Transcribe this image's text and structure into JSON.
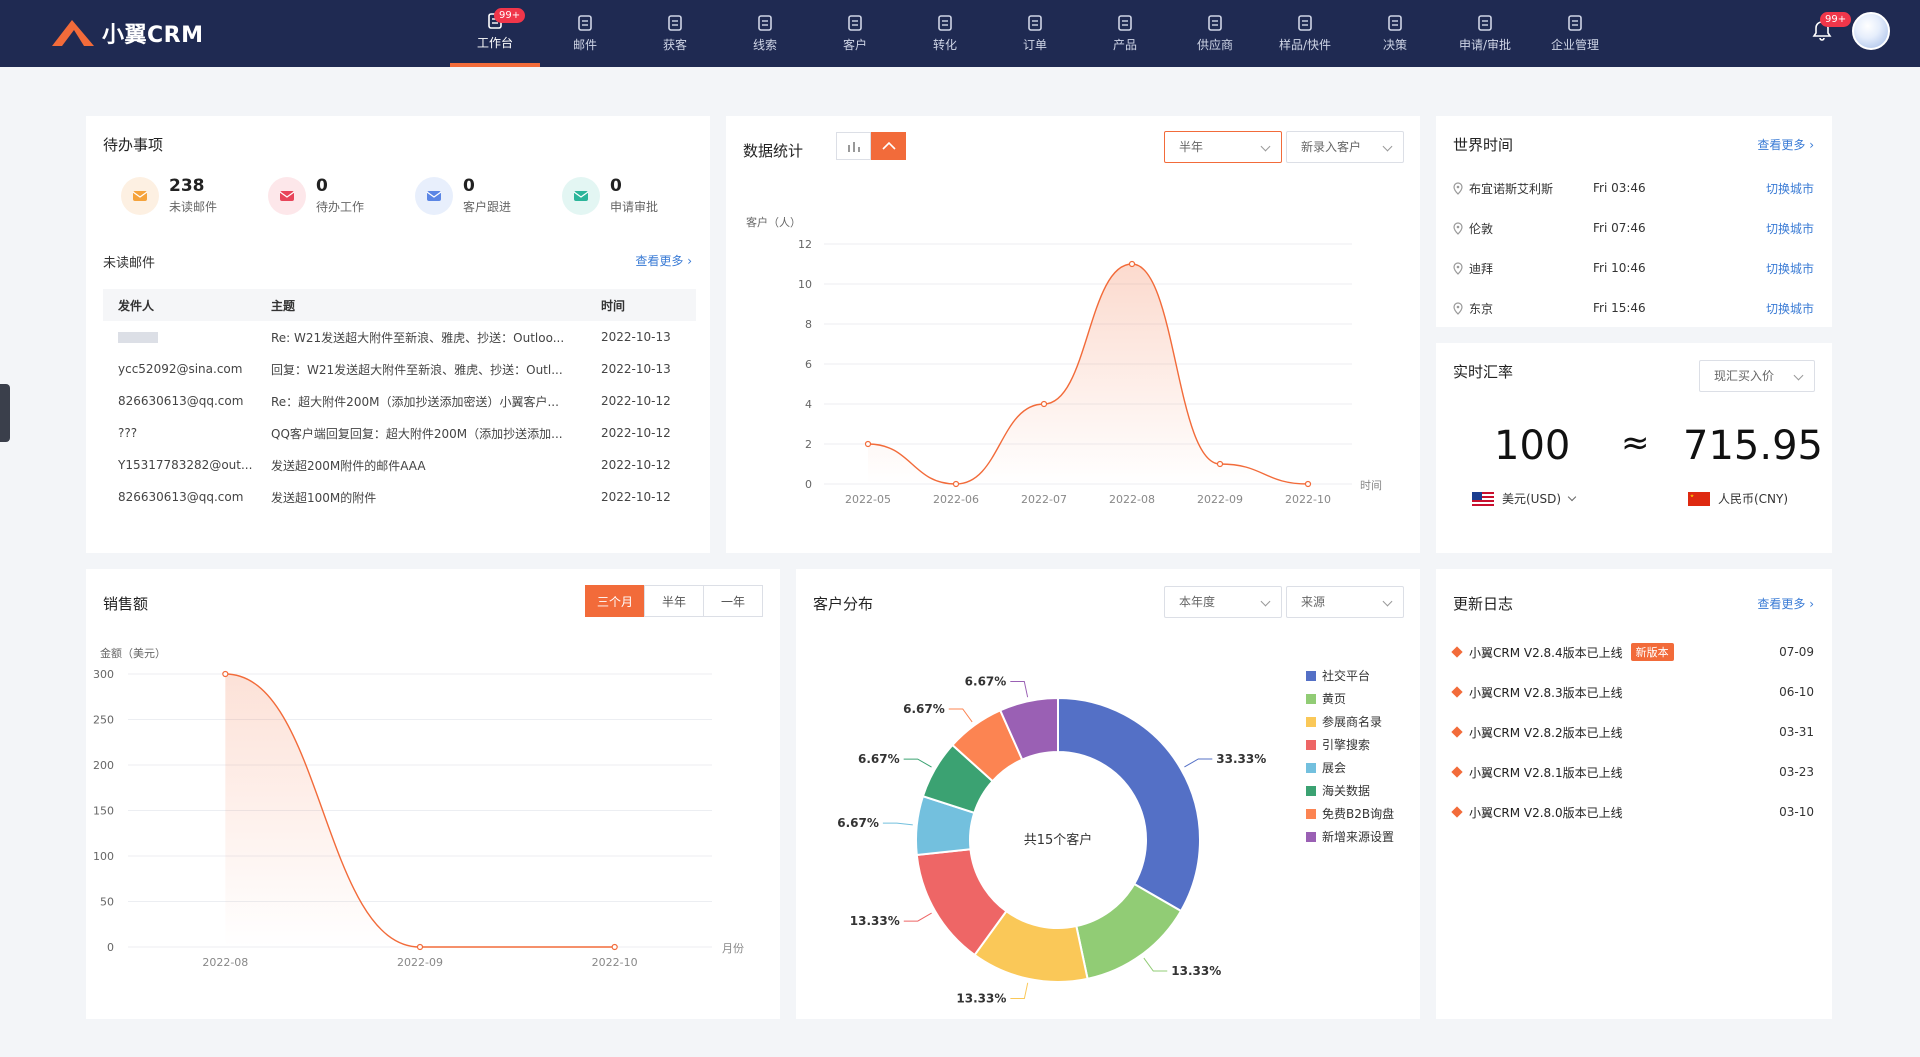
{
  "app": {
    "logo_text": "小翼CRM",
    "accent": "#f26b3a",
    "nav_bg": "#1f2a52"
  },
  "nav": [
    {
      "label": "工作台",
      "icon": "dashboard-icon",
      "badge": "99+",
      "active": true
    },
    {
      "label": "邮件",
      "icon": "mail-icon"
    },
    {
      "label": "获客",
      "icon": "acquire-icon"
    },
    {
      "label": "线索",
      "icon": "lead-icon"
    },
    {
      "label": "客户",
      "icon": "customer-icon"
    },
    {
      "label": "转化",
      "icon": "funnel-icon"
    },
    {
      "label": "订单",
      "icon": "order-icon"
    },
    {
      "label": "产品",
      "icon": "product-icon"
    },
    {
      "label": "供应商",
      "icon": "supplier-icon"
    },
    {
      "label": "样品/快件",
      "icon": "sample-icon"
    },
    {
      "label": "决策",
      "icon": "decision-icon"
    },
    {
      "label": "申请/审批",
      "icon": "approval-icon"
    },
    {
      "label": "企业管理",
      "icon": "company-icon"
    }
  ],
  "header": {
    "bell_badge": "99+"
  },
  "todo": {
    "title": "待办事项",
    "stats": [
      {
        "num": "238",
        "label": "未读邮件",
        "icon": "envelope-icon",
        "bg": "#fdf0e2",
        "fg": "#f5a33c"
      },
      {
        "num": "0",
        "label": "待办工作",
        "icon": "briefcase-icon",
        "bg": "#fde7ea",
        "fg": "#e8455a"
      },
      {
        "num": "0",
        "label": "客户跟进",
        "icon": "user-add-icon",
        "bg": "#e8effc",
        "fg": "#5b86e5"
      },
      {
        "num": "0",
        "label": "申请审批",
        "icon": "doc-check-icon",
        "bg": "#e3f6f3",
        "fg": "#2bb59a"
      }
    ],
    "unread_title": "未读邮件",
    "more": "查看更多",
    "columns": [
      "发件人",
      "主题",
      "时间"
    ],
    "rows": [
      [
        "",
        "Re: W21发送超大附件至新浪、雅虎、抄送：Outloo...",
        "2022-10-13"
      ],
      [
        "ycc52092@sina.com",
        "回复：W21发送超大附件至新浪、雅虎、抄送：Outl...",
        "2022-10-13"
      ],
      [
        "826630613@qq.com",
        "Re：超大附件200M（添加抄送添加密送）小翼客户...",
        "2022-10-12"
      ],
      [
        "???",
        "QQ客户端回复回复：超大附件200M（添加抄送添加...",
        "2022-10-12"
      ],
      [
        "Y15317783282@out...",
        "发送超200M附件的邮件AAA",
        "2022-10-12"
      ],
      [
        "826630613@qq.com",
        "发送超100M的附件",
        "2022-10-12"
      ]
    ]
  },
  "stats_card": {
    "title": "数据统计",
    "period": "半年",
    "metric": "新录入客户",
    "ylabel": "客户（人）",
    "xlabel": "时间"
  },
  "world_time": {
    "title": "世界时间",
    "more": "查看更多",
    "switch_label": "切换城市",
    "rows": [
      {
        "city": "布宜诺斯艾利斯",
        "time": "Fri 03:46"
      },
      {
        "city": "伦敦",
        "time": "Fri 07:46"
      },
      {
        "city": "迪拜",
        "time": "Fri 10:46"
      },
      {
        "city": "东京",
        "time": "Fri 15:46"
      }
    ]
  },
  "fx": {
    "title": "实时汇率",
    "rate_type": "现汇买入价",
    "from_amount": "100",
    "approx": "≈",
    "to_amount": "715.95",
    "from_currency": "美元(USD)",
    "to_currency": "人民币(CNY)"
  },
  "sales": {
    "title": "销售额",
    "ranges": [
      "三个月",
      "半年",
      "一年"
    ],
    "active_range": 0,
    "ylabel": "金额（美元）",
    "xlabel": "月份"
  },
  "distribution": {
    "title": "客户分布",
    "period": "本年度",
    "dimension": "来源",
    "center_text": "共15个客户"
  },
  "changelog": {
    "title": "更新日志",
    "more": "查看更多",
    "new_tag": "新版本",
    "rows": [
      {
        "text": "小翼CRM V2.8.4版本已上线",
        "date": "07-09",
        "is_new": true
      },
      {
        "text": "小翼CRM V2.8.3版本已上线",
        "date": "06-10"
      },
      {
        "text": "小翼CRM V2.8.2版本已上线",
        "date": "03-31"
      },
      {
        "text": "小翼CRM V2.8.1版本已上线",
        "date": "03-23"
      },
      {
        "text": "小翼CRM V2.8.0版本已上线",
        "date": "03-10"
      }
    ]
  },
  "chart_data": [
    {
      "type": "line",
      "ylabel": "客户（人）",
      "xlabel": "时间",
      "x": [
        "2022-05",
        "2022-06",
        "2022-07",
        "2022-08",
        "2022-09",
        "2022-10"
      ],
      "values": [
        2,
        0,
        4,
        11,
        1,
        0
      ],
      "ylim": [
        0,
        12
      ],
      "yticks": [
        0,
        2,
        4,
        6,
        8,
        10,
        12
      ],
      "color": "#f26b3a",
      "grid": true
    },
    {
      "type": "area",
      "ylabel": "金额（美元）",
      "xlabel": "月份",
      "x": [
        "2022-08",
        "2022-09",
        "2022-10"
      ],
      "values": [
        300,
        0,
        0
      ],
      "ylim": [
        0,
        300
      ],
      "yticks": [
        0,
        50,
        100,
        150,
        200,
        250,
        300
      ],
      "color": "#f26b3a",
      "grid": true
    },
    {
      "type": "pie",
      "center_text": "共15个客户",
      "slices": [
        {
          "name": "社交平台",
          "value": 33.33,
          "label": "33.33%",
          "color": "#5470c6"
        },
        {
          "name": "黄页",
          "value": 13.33,
          "label": "13.33%",
          "color": "#91cc75"
        },
        {
          "name": "参展商名录",
          "value": 13.33,
          "label": "13.33%",
          "color": "#fac858"
        },
        {
          "name": "引擎搜索",
          "value": 13.33,
          "label": "13.33%",
          "color": "#ee6666"
        },
        {
          "name": "展会",
          "value": 6.67,
          "label": "6.67%",
          "color": "#73c0de"
        },
        {
          "name": "海关数据",
          "value": 6.67,
          "label": "6.67%",
          "color": "#3ba272"
        },
        {
          "name": "免费B2B询盘",
          "value": 6.67,
          "label": "6.67%",
          "color": "#fc8452"
        },
        {
          "name": "新增来源设置",
          "value": 6.67,
          "label": "6.67%",
          "color": "#9a60b4"
        }
      ],
      "legend": "right"
    }
  ]
}
